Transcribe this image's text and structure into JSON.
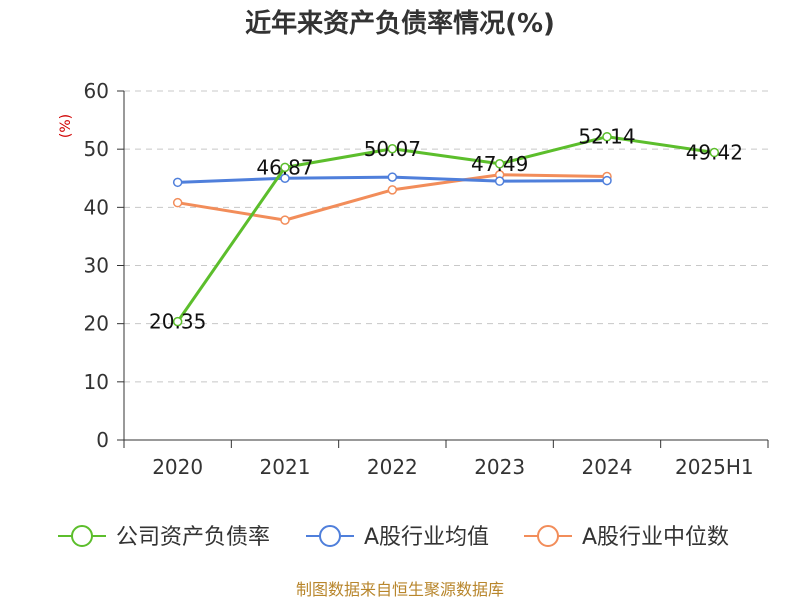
{
  "chart_data": {
    "type": "line",
    "title": "近年来资产负债率情况(%)",
    "ylabel": "(%)",
    "xlabel": "",
    "categories": [
      "2020",
      "2021",
      "2022",
      "2023",
      "2024",
      "2025H1"
    ],
    "ylim": [
      0,
      60
    ],
    "yticks": [
      "0",
      "10",
      "20",
      "30",
      "40",
      "50",
      "60"
    ],
    "grid": true,
    "legend_position": "bottom",
    "series": [
      {
        "name": "公司资产负债率",
        "color": "#5cbe2c",
        "values": [
          20.35,
          46.87,
          50.07,
          47.49,
          52.14,
          49.42
        ],
        "labels": [
          "20.35",
          "46.87",
          "50.07",
          "47.49",
          "52.14",
          "49.42"
        ]
      },
      {
        "name": "A股行业均值",
        "color": "#4f7fdb",
        "values": [
          44.3,
          45.0,
          45.2,
          44.5,
          44.6,
          null
        ]
      },
      {
        "name": "A股行业中位数",
        "color": "#f28d5a",
        "values": [
          40.8,
          37.8,
          43.0,
          45.6,
          45.3,
          null
        ]
      }
    ]
  },
  "source": "制图数据来自恒生聚源数据库"
}
